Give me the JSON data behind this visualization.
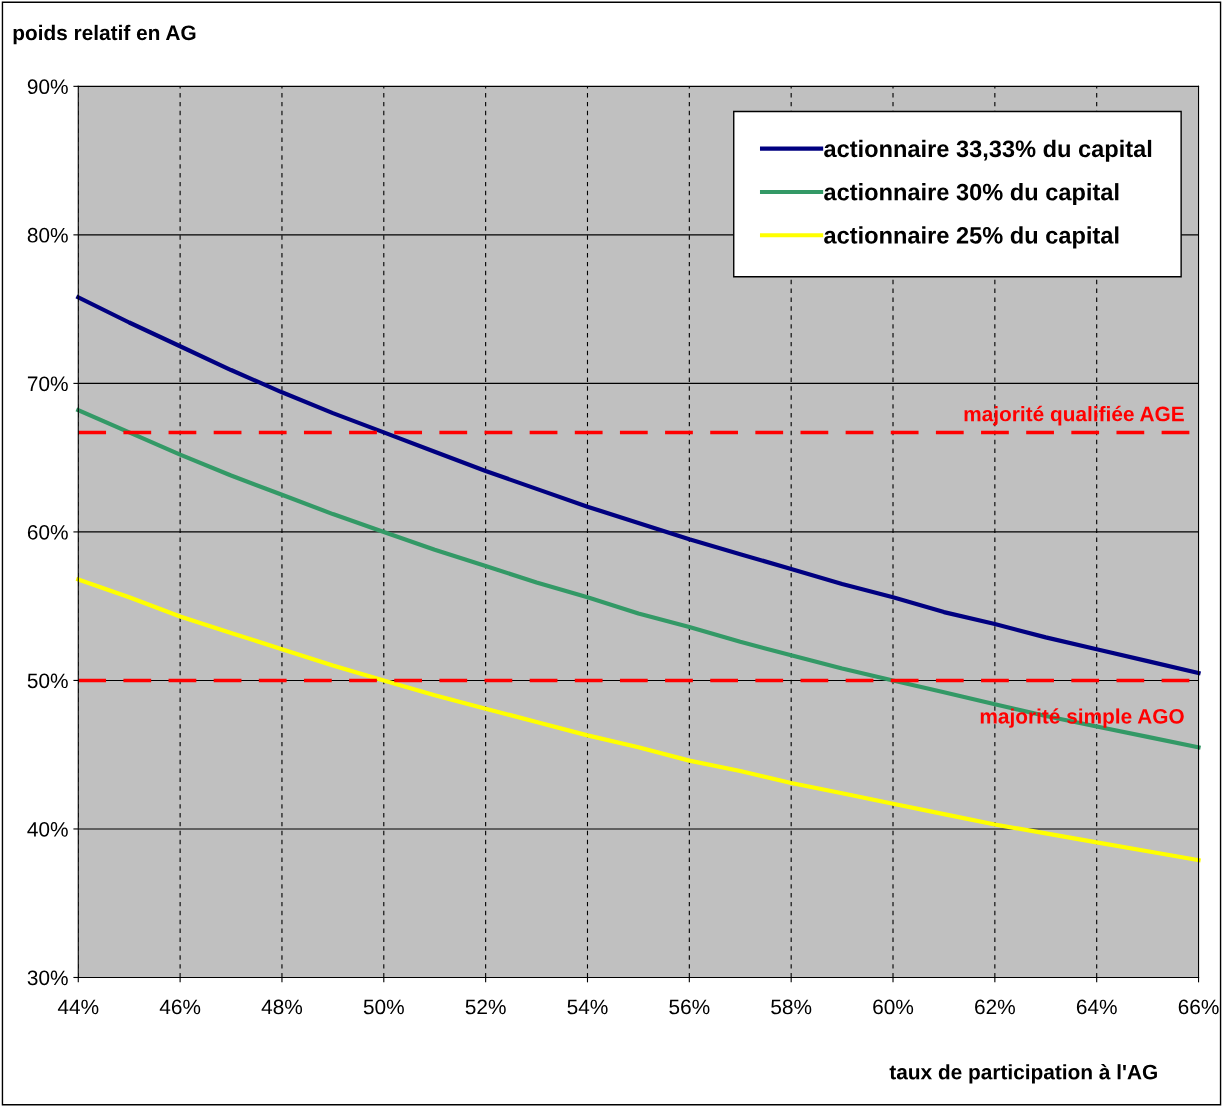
{
  "chart_data": {
    "type": "line",
    "xlabel": "taux de participation à l'AG",
    "ylabel": "poids relatif en AG",
    "x": [
      44,
      45,
      46,
      47,
      48,
      49,
      50,
      51,
      52,
      53,
      54,
      55,
      56,
      57,
      58,
      59,
      60,
      61,
      62,
      63,
      64,
      65,
      66
    ],
    "series": [
      {
        "name": "actionnaire 33,33% du capital",
        "color": "#000080",
        "values": [
          75.8,
          74.1,
          72.5,
          70.9,
          69.4,
          68.0,
          66.7,
          65.4,
          64.1,
          62.9,
          61.7,
          60.6,
          59.5,
          58.5,
          57.5,
          56.5,
          55.6,
          54.6,
          53.8,
          52.9,
          52.1,
          51.3,
          50.5
        ]
      },
      {
        "name": "actionnaire 30% du capital",
        "color": "#339966",
        "values": [
          68.2,
          66.7,
          65.2,
          63.8,
          62.5,
          61.2,
          60.0,
          58.8,
          57.7,
          56.6,
          55.6,
          54.5,
          53.6,
          52.6,
          51.7,
          50.8,
          50.0,
          49.2,
          48.4,
          47.6,
          46.9,
          46.2,
          45.5
        ]
      },
      {
        "name": "actionnaire 25% du capital",
        "color": "#ffff00",
        "values": [
          56.8,
          55.6,
          54.3,
          53.2,
          52.1,
          51.0,
          50.0,
          49.0,
          48.1,
          47.2,
          46.3,
          45.5,
          44.6,
          43.9,
          43.1,
          42.4,
          41.7,
          41.0,
          40.3,
          39.7,
          39.1,
          38.5,
          37.9
        ]
      }
    ],
    "xlim": [
      44,
      66
    ],
    "xticks": [
      {
        "value": 44,
        "label": "44%"
      },
      {
        "value": 46,
        "label": "46%"
      },
      {
        "value": 48,
        "label": "48%"
      },
      {
        "value": 50,
        "label": "50%"
      },
      {
        "value": 52,
        "label": "52%"
      },
      {
        "value": 54,
        "label": "54%"
      },
      {
        "value": 56,
        "label": "56%"
      },
      {
        "value": 58,
        "label": "58%"
      },
      {
        "value": 60,
        "label": "60%"
      },
      {
        "value": 62,
        "label": "62%"
      },
      {
        "value": 64,
        "label": "64%"
      },
      {
        "value": 66,
        "label": "66%"
      }
    ],
    "ylim": [
      30,
      90
    ],
    "yticks": [
      {
        "value": 30,
        "label": "30%"
      },
      {
        "value": 40,
        "label": "40%"
      },
      {
        "value": 50,
        "label": "50%"
      },
      {
        "value": 60,
        "label": "60%"
      },
      {
        "value": 70,
        "label": "70%"
      },
      {
        "value": 80,
        "label": "80%"
      },
      {
        "value": 90,
        "label": "90%"
      }
    ],
    "ref_lines": [
      {
        "axis": "y",
        "value": 66.7,
        "label": "majorité qualifiée AGE",
        "color": "#ff0000",
        "line_style": "dashed"
      },
      {
        "axis": "y",
        "value": 50,
        "label": "majorité simple AGO",
        "color": "#ff0000",
        "line_style": "dashed"
      }
    ],
    "grid": true,
    "legend": "top right",
    "marker": "none",
    "line_style": "solid"
  }
}
